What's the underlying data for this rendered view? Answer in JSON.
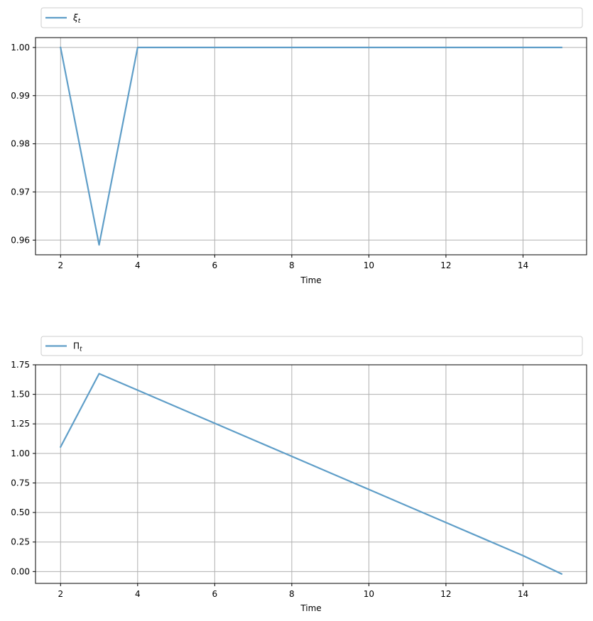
{
  "chart_data": [
    {
      "type": "line",
      "xlabel": "Time",
      "ylabel": "",
      "xlim": [
        1.35,
        15.65
      ],
      "ylim": [
        0.95695,
        1.00205
      ],
      "xticks": [
        2,
        4,
        6,
        8,
        10,
        12,
        14
      ],
      "xtick_labels": [
        "2",
        "4",
        "6",
        "8",
        "10",
        "12",
        "14"
      ],
      "yticks": [
        0.96,
        0.97,
        0.98,
        0.99,
        1.0
      ],
      "ytick_labels": [
        "0.96",
        "0.97",
        "0.98",
        "0.99",
        "1.00"
      ],
      "grid": true,
      "legend": "above",
      "series": [
        {
          "name": "ξ",
          "name_subscript": "t",
          "color": "#5f9ec8",
          "x": [
            2,
            3,
            4,
            5,
            6,
            7,
            8,
            9,
            10,
            11,
            12,
            13,
            14,
            15
          ],
          "y": [
            1.0,
            0.959,
            1.0,
            1.0,
            1.0,
            1.0,
            1.0,
            1.0,
            1.0,
            1.0,
            1.0,
            1.0,
            1.0,
            1.0
          ]
        }
      ]
    },
    {
      "type": "line",
      "xlabel": "Time",
      "ylabel": "",
      "xlim": [
        1.35,
        15.65
      ],
      "ylim": [
        -0.1,
        1.75
      ],
      "xticks": [
        2,
        4,
        6,
        8,
        10,
        12,
        14
      ],
      "xtick_labels": [
        "2",
        "4",
        "6",
        "8",
        "10",
        "12",
        "14"
      ],
      "yticks": [
        0.0,
        0.25,
        0.5,
        0.75,
        1.0,
        1.25,
        1.5,
        1.75
      ],
      "ytick_labels": [
        "0.00",
        "0.25",
        "0.50",
        "0.75",
        "1.00",
        "1.25",
        "1.50",
        "1.75"
      ],
      "grid": true,
      "legend": "above",
      "series": [
        {
          "name": "Π",
          "name_subscript": "t",
          "color": "#5f9ec8",
          "x": [
            2,
            3,
            4,
            5,
            6,
            7,
            8,
            9,
            10,
            11,
            12,
            13,
            14,
            15
          ],
          "y": [
            1.055,
            1.675,
            1.535,
            1.395,
            1.255,
            1.115,
            0.975,
            0.835,
            0.695,
            0.555,
            0.415,
            0.275,
            0.135,
            -0.02
          ]
        }
      ]
    }
  ]
}
